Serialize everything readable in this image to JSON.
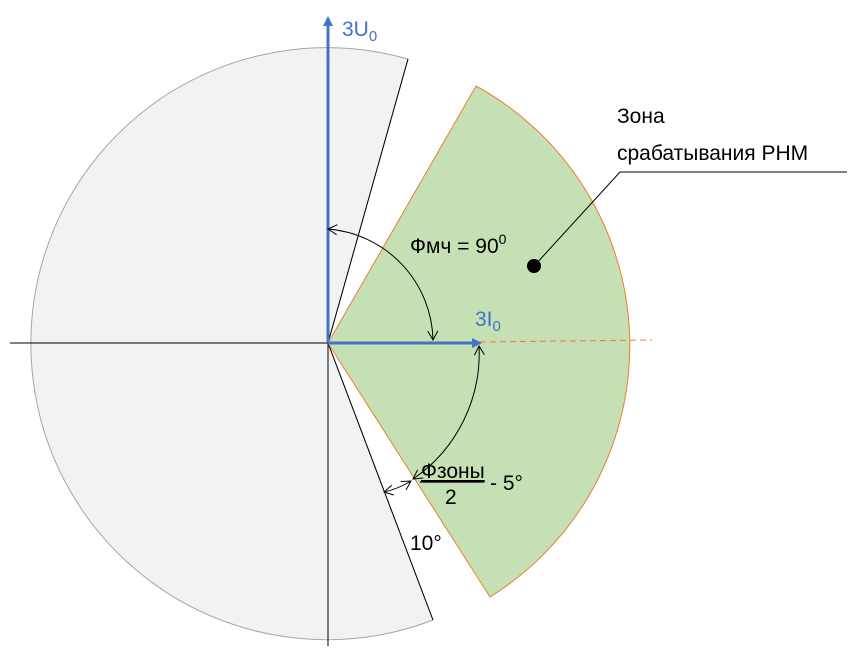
{
  "vectors": {
    "u0": {
      "main": "3U",
      "sub": "0"
    },
    "i0": {
      "main": "3I",
      "sub": "0"
    }
  },
  "zone": {
    "label_line1": "Зона",
    "label_line2": "срабатывания РНМ"
  },
  "angles": {
    "phi_mch": {
      "text": "Фмч = 90",
      "sup": "0"
    },
    "phi_zone": {
      "numerator": "Фзоны",
      "denominator": "2",
      "suffix": "- 5°"
    },
    "offset": "10°"
  },
  "colors": {
    "vector": "#4472c4",
    "zone_fill": "#c5e0b4",
    "zone_edge": "#ed7d31",
    "blocked_fill": "#f2f2f2",
    "blocked_edge": "#a6a6a6",
    "line": "#000000"
  }
}
